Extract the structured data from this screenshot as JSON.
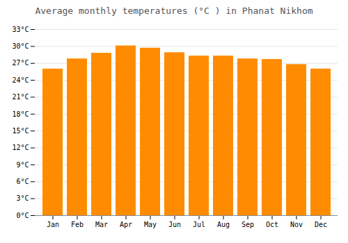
{
  "chart_data": {
    "type": "bar",
    "title": "Average monthly temperatures (°C ) in Phanat Nikhom",
    "categories": [
      "Jan",
      "Feb",
      "Mar",
      "Apr",
      "May",
      "Jun",
      "Jul",
      "Aug",
      "Sep",
      "Oct",
      "Nov",
      "Dec"
    ],
    "values": [
      26.0,
      27.8,
      28.8,
      30.1,
      29.7,
      28.9,
      28.3,
      28.3,
      27.8,
      27.7,
      26.8,
      26.0
    ],
    "color": "#FF8C00",
    "ylim": [
      0,
      33
    ],
    "yticks": [
      {
        "value": 0,
        "label": "0°C"
      },
      {
        "value": 3,
        "label": "3°C"
      },
      {
        "value": 6,
        "label": "6°C"
      },
      {
        "value": 9,
        "label": "9°C"
      },
      {
        "value": 12,
        "label": "12°C"
      },
      {
        "value": 15,
        "label": "15°C"
      },
      {
        "value": 18,
        "label": "18°C"
      },
      {
        "value": 21,
        "label": "21°C"
      },
      {
        "value": 24,
        "label": "24°C"
      },
      {
        "value": 27,
        "label": "27°C"
      },
      {
        "value": 30,
        "label": "30°C"
      },
      {
        "value": 33,
        "label": "33°C"
      }
    ],
    "grid": true
  }
}
